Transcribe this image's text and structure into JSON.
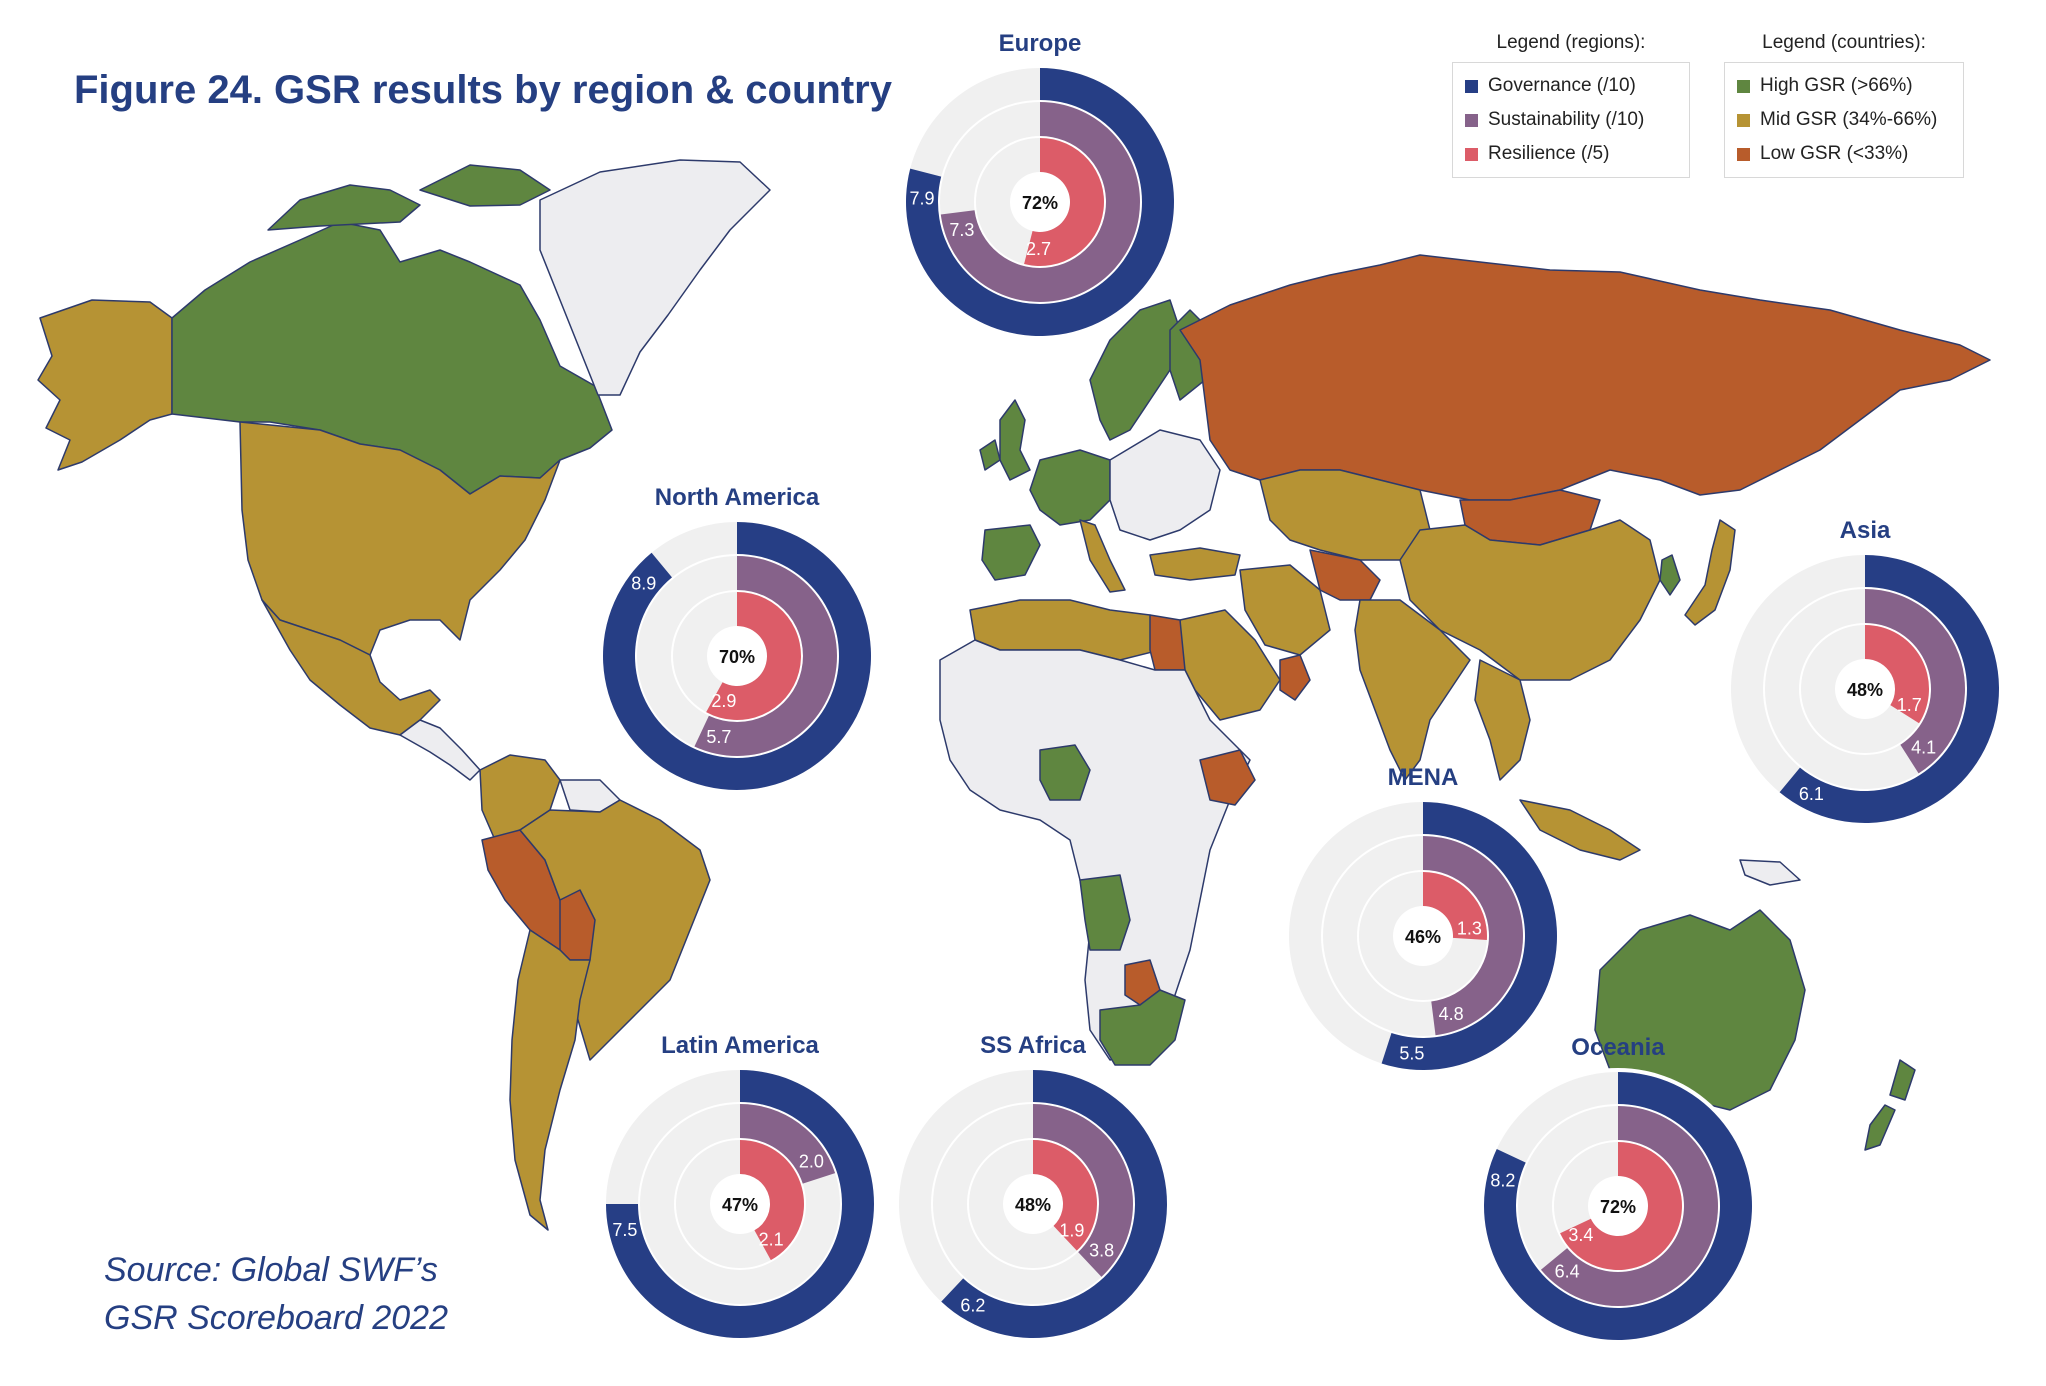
{
  "figure_title": "Figure 24. GSR results by region & country",
  "source": {
    "line1": "Source: Global SWF’s",
    "line2": "GSR Scoreboard 2022"
  },
  "legend_regions": {
    "title": "Legend (regions):",
    "items": [
      {
        "label": "Governance (/10)",
        "color": "#263e85"
      },
      {
        "label": "Sustainability (/10)",
        "color": "#86628a"
      },
      {
        "label": "Resilience (/5)",
        "color": "#dc5c68"
      }
    ]
  },
  "legend_countries": {
    "title": "Legend (countries):",
    "items": [
      {
        "label": "High GSR (>66%)",
        "color": "#5f8640"
      },
      {
        "label": "Mid GSR (34%-66%)",
        "color": "#b69334"
      },
      {
        "label": "Low GSR (<33%)",
        "color": "#b85c2b"
      }
    ]
  },
  "colors": {
    "governance": "#263e85",
    "sustainability": "#86628a",
    "resilience": "#dc5c68",
    "track": "#f0f0f0",
    "high": "#5f8640",
    "mid": "#b69334",
    "low": "#b85c2b",
    "none": "#ededf0",
    "border": "#2d3a6b"
  },
  "chart_data": [
    {
      "type": "pie",
      "region": "Europe",
      "total_label": "72%",
      "governance": 7.9,
      "governance_label": "7.9",
      "sustainability": 7.3,
      "sustainability_label": "7.3",
      "resilience": 2.7,
      "resilience_label": "2.7",
      "scale": {
        "governance": 10,
        "sustainability": 10,
        "resilience": 5
      }
    },
    {
      "type": "pie",
      "region": "North America",
      "total_label": "70%",
      "governance": 8.9,
      "governance_label": "8.9",
      "sustainability": 5.7,
      "sustainability_label": "5.7",
      "resilience": 2.9,
      "resilience_label": "2.9",
      "scale": {
        "governance": 10,
        "sustainability": 10,
        "resilience": 5
      }
    },
    {
      "type": "pie",
      "region": "Asia",
      "total_label": "48%",
      "governance": 6.1,
      "governance_label": "6.1",
      "sustainability": 4.1,
      "sustainability_label": "4.1",
      "resilience": 1.7,
      "resilience_label": "1.7",
      "scale": {
        "governance": 10,
        "sustainability": 10,
        "resilience": 5
      }
    },
    {
      "type": "pie",
      "region": "MENA",
      "total_label": "46%",
      "governance": 5.5,
      "governance_label": "5.5",
      "sustainability": 4.8,
      "sustainability_label": "4.8",
      "resilience": 1.3,
      "resilience_label": "1.3",
      "scale": {
        "governance": 10,
        "sustainability": 10,
        "resilience": 5
      }
    },
    {
      "type": "pie",
      "region": "Latin America",
      "total_label": "47%",
      "governance": 7.5,
      "governance_label": "7.5",
      "sustainability": 2.0,
      "sustainability_label": "2.0",
      "resilience": 2.1,
      "resilience_label": "2.1",
      "scale": {
        "governance": 10,
        "sustainability": 10,
        "resilience": 5
      }
    },
    {
      "type": "pie",
      "region": "SS Africa",
      "total_label": "48%",
      "governance": 6.2,
      "governance_label": "6.2",
      "sustainability": 3.8,
      "sustainability_label": "3.8",
      "resilience": 1.9,
      "resilience_label": "1.9",
      "scale": {
        "governance": 10,
        "sustainability": 10,
        "resilience": 5
      }
    },
    {
      "type": "pie",
      "region": "Oceania",
      "total_label": "72%",
      "governance": 8.2,
      "governance_label": "8.2",
      "sustainability": 6.4,
      "sustainability_label": "6.4",
      "resilience": 3.4,
      "resilience_label": "3.4",
      "scale": {
        "governance": 10,
        "sustainability": 10,
        "resilience": 5
      }
    }
  ]
}
